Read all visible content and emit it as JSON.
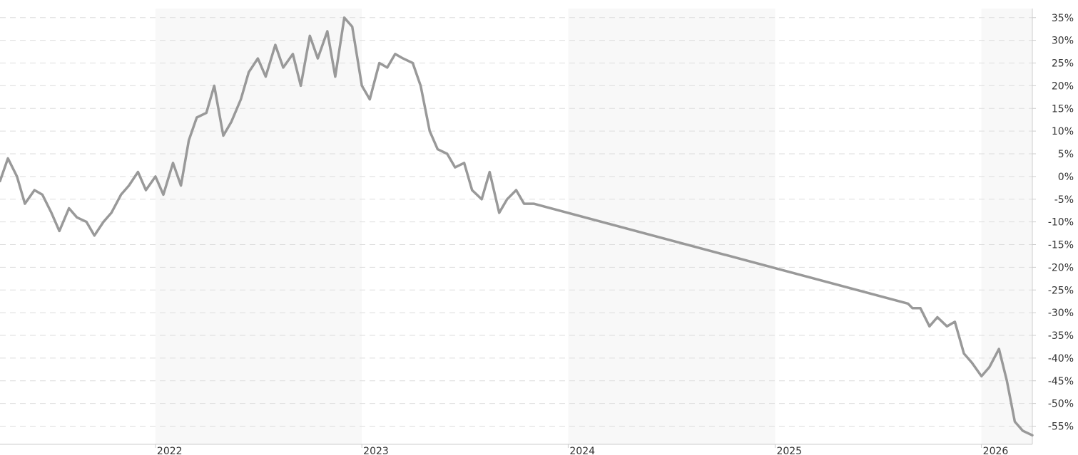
{
  "chart_data": {
    "type": "line",
    "title": "",
    "xlabel": "",
    "ylabel": "",
    "x_tick_labels": [
      "2022",
      "2023",
      "2024",
      "2025",
      "2026"
    ],
    "y_tick_labels": [
      "35%",
      "30%",
      "25%",
      "20%",
      "15%",
      "10%",
      "5%",
      "0%",
      "-5%",
      "-10%",
      "-15%",
      "-20%",
      "-25%",
      "-30%",
      "-35%",
      "-40%",
      "-45%",
      "-50%",
      "-55%"
    ],
    "ylim": [
      -59,
      37
    ],
    "xlim": [
      "2021-04-01",
      "2026-04-01"
    ],
    "y_axis_side": "right",
    "grid": "horizontal-dashed",
    "alternate_year_bands": true,
    "colors": {
      "line": "#999999",
      "band": "#f8f8f8",
      "grid": "#dddddd",
      "axis": "#cccccc",
      "text": "#333333"
    },
    "series": [
      {
        "x": [
          "2021-04-01",
          "2021-04-15",
          "2021-05-01",
          "2021-05-15",
          "2021-06-01",
          "2021-06-15",
          "2021-07-01",
          "2021-07-15",
          "2021-08-01",
          "2021-08-15",
          "2021-09-01",
          "2021-09-15",
          "2021-10-01",
          "2021-10-15",
          "2021-11-01",
          "2021-11-15",
          "2021-12-01",
          "2021-12-15",
          "2022-01-01",
          "2022-01-15",
          "2022-02-01",
          "2022-02-15",
          "2022-03-01",
          "2022-03-15",
          "2022-04-01",
          "2022-04-15",
          "2022-05-01",
          "2022-05-15",
          "2022-06-01",
          "2022-06-15",
          "2022-07-01",
          "2022-07-15",
          "2022-08-01",
          "2022-08-15",
          "2022-09-01",
          "2022-09-15",
          "2022-10-01",
          "2022-10-15",
          "2022-11-01",
          "2022-11-15",
          "2022-12-01",
          "2022-12-15",
          "2023-01-01",
          "2023-01-15",
          "2023-02-01",
          "2023-02-15",
          "2023-03-01",
          "2023-03-15",
          "2023-04-01",
          "2023-04-15",
          "2023-05-01",
          "2023-05-15",
          "2023-06-01",
          "2023-06-15",
          "2023-07-01",
          "2023-07-15",
          "2023-08-01",
          "2023-08-15",
          "2023-09-01",
          "2023-09-15",
          "2023-10-01",
          "2023-10-15",
          "2023-11-01",
          "2025-08-24",
          "2025-09-01",
          "2025-09-15",
          "2025-10-01",
          "2025-10-15",
          "2025-11-01",
          "2025-11-15",
          "2025-12-01",
          "2025-12-15",
          "2026-01-01",
          "2026-01-15",
          "2026-02-01",
          "2026-02-15",
          "2026-03-01",
          "2026-03-15",
          "2026-04-01"
        ],
        "y": [
          -1,
          4,
          0,
          -6,
          -3,
          -4,
          -8,
          -12,
          -7,
          -9,
          -10,
          -13,
          -10,
          -8,
          -4,
          -2,
          1,
          -3,
          0,
          -4,
          3,
          -2,
          8,
          13,
          14,
          20,
          9,
          12,
          17,
          23,
          26,
          22,
          29,
          24,
          27,
          20,
          31,
          26,
          32,
          22,
          35,
          33,
          20,
          17,
          25,
          24,
          27,
          26,
          25,
          20,
          10,
          6,
          5,
          2,
          3,
          -3,
          -5,
          1,
          -8,
          -5,
          -3,
          -6,
          -6,
          -28,
          -29,
          -29,
          -33,
          -31,
          -33,
          -32,
          -39,
          -41,
          -44,
          -42,
          -38,
          -45,
          -54,
          -56,
          -57
        ]
      }
    ]
  }
}
